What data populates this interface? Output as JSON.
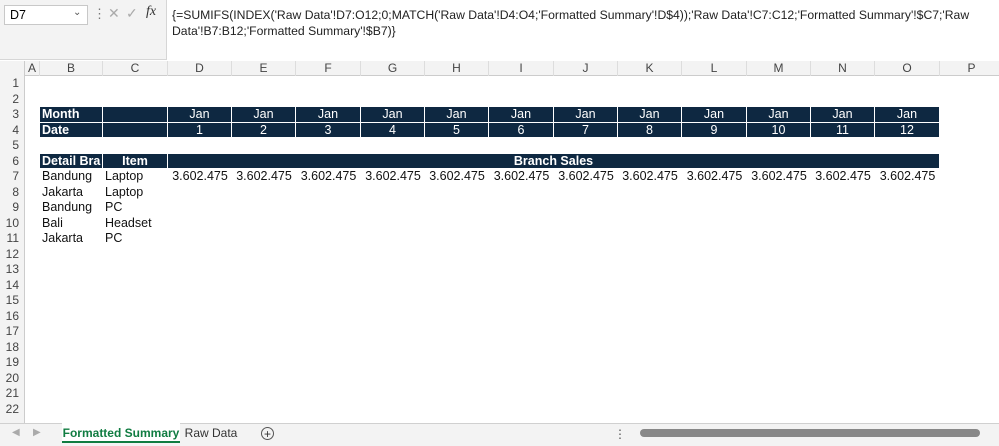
{
  "name_box": "D7",
  "formula": "{=SUMIFS(INDEX('Raw Data'!D7:O12;0;MATCH('Raw Data'!D4:O4;'Formatted Summary'!D$4));'Raw Data'!C7:C12;'Formatted Summary'!$C7;'Raw Data'!B7:B12;'Formatted Summary'!$B7)}",
  "columns": [
    "A",
    "B",
    "C",
    "D",
    "E",
    "F",
    "G",
    "H",
    "I",
    "J",
    "K",
    "L",
    "M",
    "N",
    "O",
    "P"
  ],
  "rows": [
    1,
    2,
    3,
    4,
    5,
    6,
    7,
    8,
    9,
    10,
    11,
    12,
    13,
    14,
    15,
    16,
    17,
    18,
    19,
    20,
    21,
    22
  ],
  "table": {
    "month_label": "Month",
    "months": [
      "Jan",
      "Jan",
      "Jan",
      "Jan",
      "Jan",
      "Jan",
      "Jan",
      "Jan",
      "Jan",
      "Jan",
      "Jan",
      "Jan"
    ],
    "date_label": "Date",
    "dates": [
      1,
      2,
      3,
      4,
      5,
      6,
      7,
      8,
      9,
      10,
      11,
      12
    ],
    "detail_header": "Detail Bra",
    "item_header": "Item",
    "sales_header": "Branch Sales",
    "rows": [
      {
        "branch": "Bandung",
        "item": "Laptop",
        "sales": [
          "3.602.475",
          "3.602.475",
          "3.602.475",
          "3.602.475",
          "3.602.475",
          "3.602.475",
          "3.602.475",
          "3.602.475",
          "3.602.475",
          "3.602.475",
          "3.602.475",
          "3.602.475"
        ]
      },
      {
        "branch": "Jakarta",
        "item": "Laptop"
      },
      {
        "branch": "Bandung",
        "item": "PC"
      },
      {
        "branch": "Bali",
        "item": "Headset"
      },
      {
        "branch": "Jakarta",
        "item": "PC"
      }
    ]
  },
  "tabs": [
    "Formatted Summary",
    "Raw Data"
  ]
}
